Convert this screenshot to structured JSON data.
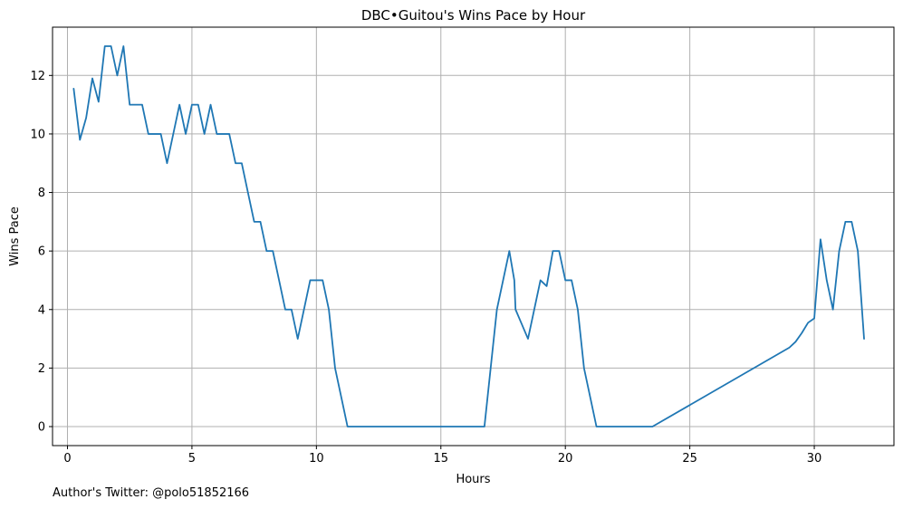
{
  "chart_data": {
    "type": "line",
    "title": "DBC•Guitou's Wins Pace by Hour",
    "xlabel": "Hours",
    "ylabel": "Wins Pace",
    "xlim": [
      -0.6,
      33.2
    ],
    "ylim": [
      -0.65,
      13.65
    ],
    "xticks": [
      0,
      5,
      10,
      15,
      20,
      25,
      30
    ],
    "yticks": [
      0,
      2,
      4,
      6,
      8,
      10,
      12
    ],
    "grid": true,
    "line_color": "#1f77b4",
    "series": [
      {
        "x": [
          0.25,
          0.5,
          0.75,
          1.0,
          1.25,
          1.5,
          1.75,
          2.0,
          2.25,
          2.5,
          2.75,
          3.0,
          3.25,
          3.5,
          3.75,
          4.0,
          4.25,
          4.5,
          4.75,
          5.0,
          5.25,
          5.5,
          5.75,
          6.0,
          6.25,
          6.5,
          6.75,
          7.0,
          7.25,
          7.5,
          7.75,
          8.0,
          8.25,
          8.5,
          8.75,
          9.0,
          9.25,
          9.5,
          9.75,
          10.0,
          10.25,
          10.5,
          10.75,
          11.0,
          11.25,
          16.75,
          17.0,
          17.25,
          17.5,
          17.75,
          17.95,
          18.0,
          18.25,
          18.5,
          18.75,
          19.0,
          19.25,
          19.5,
          19.75,
          20.0,
          20.25,
          20.5,
          20.75,
          21.0,
          21.25,
          23.5,
          29.0,
          29.25,
          29.5,
          29.75,
          30.0,
          30.25,
          30.5,
          30.75,
          31.0,
          31.25,
          31.5,
          31.75,
          32.0
        ],
        "y": [
          11.55,
          9.8,
          10.55,
          11.9,
          11.1,
          13.0,
          13.0,
          12.0,
          13.0,
          11.0,
          11.0,
          11.0,
          10.0,
          10.0,
          10.0,
          9.0,
          10.0,
          11.0,
          10.0,
          11.0,
          11.0,
          10.0,
          11.0,
          10.0,
          10.0,
          10.0,
          9.0,
          9.0,
          8.0,
          7.0,
          7.0,
          6.0,
          6.0,
          5.0,
          4.0,
          4.0,
          3.0,
          4.0,
          5.0,
          5.0,
          5.0,
          4.0,
          2.0,
          1.0,
          0.0,
          0.0,
          2.0,
          4.0,
          5.0,
          6.0,
          5.0,
          4.0,
          3.5,
          3.0,
          4.0,
          5.0,
          4.8,
          6.0,
          6.0,
          5.0,
          5.0,
          4.0,
          2.0,
          1.0,
          0.0,
          0.0,
          2.7,
          2.9,
          3.2,
          3.55,
          3.7,
          6.4,
          5.0,
          4.0,
          6.0,
          7.0,
          7.0,
          6.0,
          3.0
        ]
      }
    ]
  },
  "footer": {
    "author_text": "Author's Twitter: @polo51852166"
  }
}
